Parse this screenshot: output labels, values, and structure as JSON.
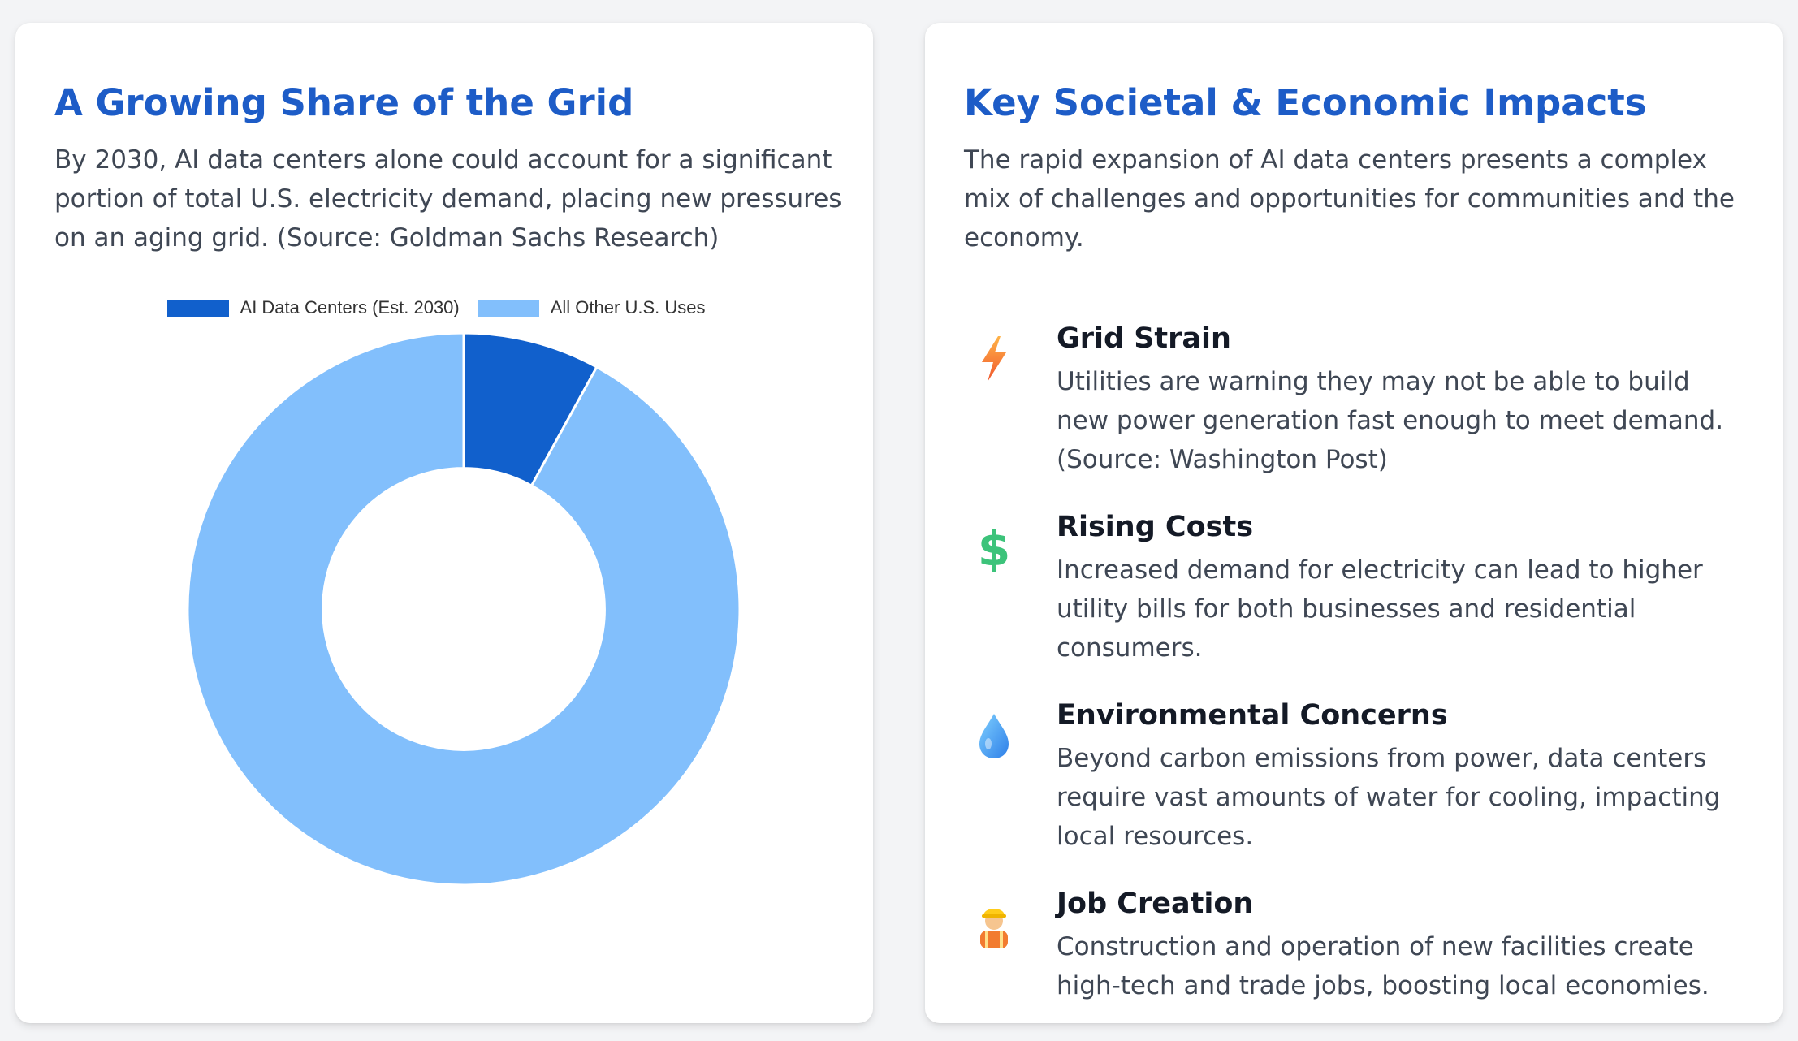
{
  "left_card": {
    "title": "A Growing Share of the Grid",
    "description": "By 2030, AI data centers alone could account for a significant portion of total U.S. electricity demand, placing new pressures on an aging grid. (Source: Goldman Sachs Research)"
  },
  "chart_data": {
    "type": "pie",
    "title": "",
    "legend_position": "top",
    "hole": 0.51,
    "categories": [
      "AI Data Centers (Est. 2030)",
      "All Other U.S. Uses"
    ],
    "values": [
      8,
      92
    ],
    "colors": [
      "#1160cc",
      "#82bffc"
    ]
  },
  "right_card": {
    "title": "Key Societal & Economic Impacts",
    "description": "The rapid expansion of AI data centers presents a complex mix of challenges and opportunities for communities and the economy.",
    "impacts": [
      {
        "icon": "lightning-icon",
        "title": "Grid Strain",
        "body": "Utilities are warning they may not be able to build new power generation fast enough to meet demand. (Source: Washington Post)"
      },
      {
        "icon": "dollar-icon",
        "title": "Rising Costs",
        "body": "Increased demand for electricity can lead to higher utility bills for both businesses and residential consumers."
      },
      {
        "icon": "water-drop-icon",
        "title": "Environmental Concerns",
        "body": "Beyond carbon emissions from power, data centers require vast amounts of water for cooling, impacting local resources."
      },
      {
        "icon": "construction-worker-icon",
        "title": "Job Creation",
        "body": "Construction and operation of new facilities create high-tech and trade jobs, boosting local economies."
      }
    ]
  }
}
